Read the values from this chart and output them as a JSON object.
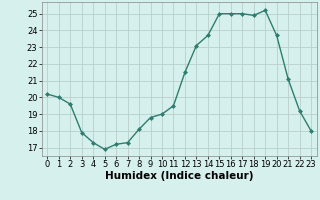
{
  "x": [
    0,
    1,
    2,
    3,
    4,
    5,
    6,
    7,
    8,
    9,
    10,
    11,
    12,
    13,
    14,
    15,
    16,
    17,
    18,
    19,
    20,
    21,
    22,
    23
  ],
  "y": [
    20.2,
    20.0,
    19.6,
    17.9,
    17.3,
    16.9,
    17.2,
    17.3,
    18.1,
    18.8,
    19.0,
    19.5,
    21.5,
    23.1,
    23.7,
    25.0,
    25.0,
    25.0,
    24.9,
    25.2,
    23.7,
    21.1,
    19.2,
    18.0
  ],
  "line_color": "#2E7D6E",
  "marker": "D",
  "marker_size": 2.0,
  "bg_color": "#D6F0EE",
  "grid_color": "#BACFCC",
  "xlabel": "Humidex (Indice chaleur)",
  "xlabel_fontsize": 7.5,
  "xlim": [
    -0.5,
    23.5
  ],
  "ylim": [
    16.5,
    25.7
  ],
  "yticks": [
    17,
    18,
    19,
    20,
    21,
    22,
    23,
    24,
    25
  ],
  "xticks": [
    0,
    1,
    2,
    3,
    4,
    5,
    6,
    7,
    8,
    9,
    10,
    11,
    12,
    13,
    14,
    15,
    16,
    17,
    18,
    19,
    20,
    21,
    22,
    23
  ],
  "tick_fontsize": 6.0,
  "linewidth": 1.0
}
